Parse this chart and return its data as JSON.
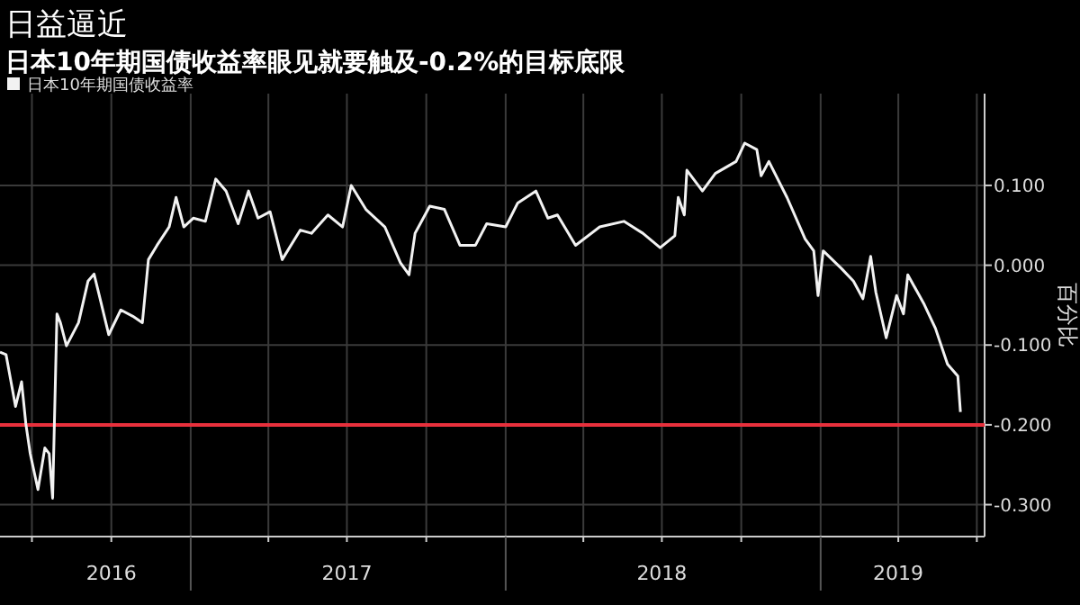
{
  "chart_data": {
    "type": "line",
    "title": "日益逼近",
    "subtitle": "日本10年期国债收益率眼见就要触及-0.2%的目标底限",
    "ylabel": "百分比",
    "x": [
      "2016-05-25",
      "2016-06-01",
      "2016-06-12",
      "2016-06-19",
      "2016-06-24",
      "2016-06-29",
      "2016-07-08",
      "2016-07-16",
      "2016-07-21",
      "2016-07-25",
      "2016-07-30",
      "2016-08-03",
      "2016-08-10",
      "2016-08-24",
      "2016-09-04",
      "2016-09-11",
      "2016-09-18",
      "2016-09-28",
      "2016-10-12",
      "2016-10-26",
      "2016-11-06",
      "2016-11-13",
      "2016-11-23",
      "2016-12-07",
      "2016-12-15",
      "2016-12-24",
      "2017-01-04",
      "2017-01-18",
      "2017-01-30",
      "2017-02-11",
      "2017-02-25",
      "2017-03-09",
      "2017-03-20",
      "2017-04-03",
      "2017-04-17",
      "2017-05-08",
      "2017-05-21",
      "2017-06-09",
      "2017-06-26",
      "2017-07-06",
      "2017-07-23",
      "2017-08-14",
      "2017-09-01",
      "2017-09-11",
      "2017-09-18",
      "2017-10-05",
      "2017-10-22",
      "2017-11-09",
      "2017-11-27",
      "2017-12-10",
      "2018-01-01",
      "2018-01-15",
      "2018-02-05",
      "2018-02-19",
      "2018-03-02",
      "2018-03-23",
      "2018-04-20",
      "2018-05-18",
      "2018-06-09",
      "2018-06-29",
      "2018-07-16",
      "2018-07-20",
      "2018-07-27",
      "2018-07-30",
      "2018-08-17",
      "2018-09-01",
      "2018-09-25",
      "2018-10-05",
      "2018-10-19",
      "2018-10-24",
      "2018-11-02",
      "2018-11-23",
      "2018-12-14",
      "2018-12-24",
      "2018-12-29",
      "2019-01-04",
      "2019-01-25",
      "2019-02-08",
      "2019-02-19",
      "2019-02-28",
      "2019-03-06",
      "2019-03-18",
      "2019-03-30",
      "2019-04-07",
      "2019-04-12",
      "2019-05-01",
      "2019-05-14",
      "2019-05-28",
      "2019-06-09",
      "2019-06-12"
    ],
    "series": [
      {
        "name": "日本10年期国债收益率",
        "color": "#f2f2f2",
        "values": [
          -0.109,
          -0.112,
          -0.177,
          -0.146,
          -0.199,
          -0.236,
          -0.281,
          -0.229,
          -0.236,
          -0.292,
          -0.061,
          -0.072,
          -0.101,
          -0.072,
          -0.02,
          -0.011,
          -0.042,
          -0.087,
          -0.056,
          -0.064,
          -0.072,
          0.007,
          0.025,
          0.048,
          0.085,
          0.048,
          0.059,
          0.055,
          0.108,
          0.093,
          0.052,
          0.093,
          0.059,
          0.067,
          0.007,
          0.044,
          0.04,
          0.063,
          0.048,
          0.1,
          0.07,
          0.048,
          0.003,
          -0.012,
          0.04,
          0.074,
          0.07,
          0.025,
          0.025,
          0.052,
          0.048,
          0.078,
          0.093,
          0.059,
          0.063,
          0.025,
          0.048,
          0.055,
          0.04,
          0.022,
          0.037,
          0.085,
          0.063,
          0.119,
          0.093,
          0.115,
          0.13,
          0.153,
          0.145,
          0.112,
          0.13,
          0.085,
          0.033,
          0.018,
          -0.038,
          0.018,
          -0.004,
          -0.02,
          -0.042,
          0.011,
          -0.034,
          -0.091,
          -0.038,
          -0.061,
          -0.012,
          -0.049,
          -0.079,
          -0.124,
          -0.139,
          -0.184
        ]
      }
    ],
    "xlim": [
      "2016-05-25",
      "2019-07-10"
    ],
    "xticks": [
      {
        "value": "2016-07-01",
        "label": null
      },
      {
        "value": "2016-10-01",
        "label": "2016"
      },
      {
        "value": "2017-01-01",
        "label": null
      },
      {
        "value": "2017-04-01",
        "label": null
      },
      {
        "value": "2017-07-01",
        "label": "2017"
      },
      {
        "value": "2017-10-01",
        "label": null
      },
      {
        "value": "2018-01-01",
        "label": null
      },
      {
        "value": "2018-04-01",
        "label": null
      },
      {
        "value": "2018-07-01",
        "label": "2018"
      },
      {
        "value": "2018-10-01",
        "label": null
      },
      {
        "value": "2019-01-01",
        "label": null
      },
      {
        "value": "2019-04-01",
        "label": "2019"
      },
      {
        "value": "2019-07-01",
        "label": null
      }
    ],
    "ylim": [
      -0.34,
      0.215
    ],
    "yticks": [
      {
        "value": -0.3,
        "label": "-0.300"
      },
      {
        "value": -0.2,
        "label": "-0.200"
      },
      {
        "value": -0.1,
        "label": "-0.100"
      },
      {
        "value": 0,
        "label": "0.000"
      },
      {
        "value": 0.1,
        "label": "0.100"
      }
    ],
    "ref_lines": [
      {
        "axis": "y",
        "value": -0.2,
        "color": "#e8303c"
      }
    ],
    "grid": true,
    "legend": "top left",
    "line_style": "solid",
    "marker": "none"
  }
}
